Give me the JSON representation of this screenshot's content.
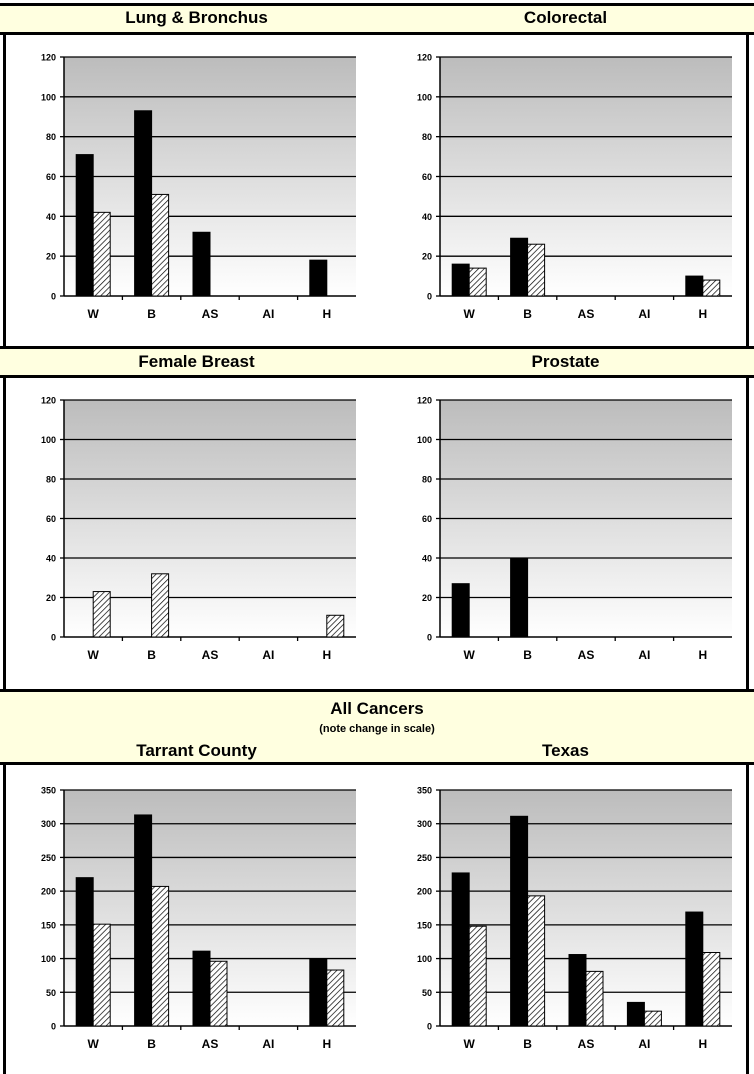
{
  "headers": {
    "row1_left": "Lung & Bronchus",
    "row1_right": "Colorectal",
    "row2_left": "Female Breast",
    "row2_right": "Prostate",
    "row3_title": "All Cancers",
    "row3_note": "(note change in scale)",
    "row3_left": "Tarrant County",
    "row3_right": "Texas"
  },
  "colors": {
    "header_bg": "#ffffe0",
    "series_a": "#000000",
    "series_b_hatch": "#ffffff"
  },
  "chart_data": [
    {
      "id": "lung",
      "type": "bar",
      "categories": [
        "W",
        "B",
        "AS",
        "AI",
        "H"
      ],
      "ylim": [
        0,
        120
      ],
      "yticks": [
        "0",
        "20",
        "40",
        "60",
        "80",
        "100",
        "120"
      ],
      "series": [
        {
          "values": [
            71,
            93,
            32,
            null,
            18
          ]
        },
        {
          "values": [
            42,
            51,
            null,
            null,
            null
          ]
        }
      ]
    },
    {
      "id": "colorectal",
      "type": "bar",
      "categories": [
        "W",
        "B",
        "AS",
        "AI",
        "H"
      ],
      "ylim": [
        0,
        120
      ],
      "yticks": [
        "0",
        "20",
        "40",
        "60",
        "80",
        "100",
        "120"
      ],
      "series": [
        {
          "values": [
            16,
            29,
            null,
            null,
            10
          ]
        },
        {
          "values": [
            14,
            26,
            null,
            null,
            8
          ]
        }
      ]
    },
    {
      "id": "breast",
      "type": "bar",
      "categories": [
        "W",
        "B",
        "AS",
        "AI",
        "H"
      ],
      "ylim": [
        0,
        120
      ],
      "yticks": [
        "0",
        "20",
        "40",
        "60",
        "80",
        "100",
        "120"
      ],
      "series": [
        {
          "values": [
            null,
            null,
            null,
            null,
            null
          ]
        },
        {
          "values": [
            23,
            32,
            null,
            null,
            11
          ]
        }
      ]
    },
    {
      "id": "prostate",
      "type": "bar",
      "categories": [
        "W",
        "B",
        "AS",
        "AI",
        "H"
      ],
      "ylim": [
        0,
        120
      ],
      "yticks": [
        "0",
        "20",
        "40",
        "60",
        "80",
        "100",
        "120"
      ],
      "series": [
        {
          "values": [
            27,
            40,
            null,
            null,
            null
          ]
        },
        {
          "values": [
            null,
            null,
            null,
            null,
            null
          ]
        }
      ]
    },
    {
      "id": "all_tarrant",
      "type": "bar",
      "categories": [
        "W",
        "B",
        "AS",
        "AI",
        "H"
      ],
      "ylim": [
        0,
        350
      ],
      "yticks": [
        "0",
        "50",
        "100",
        "150",
        "200",
        "250",
        "300",
        "350"
      ],
      "series": [
        {
          "values": [
            220,
            313,
            111,
            null,
            100
          ]
        },
        {
          "values": [
            151,
            207,
            96,
            null,
            83
          ]
        }
      ]
    },
    {
      "id": "all_texas",
      "type": "bar",
      "categories": [
        "W",
        "B",
        "AS",
        "AI",
        "H"
      ],
      "ylim": [
        0,
        350
      ],
      "yticks": [
        "0",
        "50",
        "100",
        "150",
        "200",
        "250",
        "300",
        "350"
      ],
      "series": [
        {
          "values": [
            227,
            311,
            106,
            35,
            169
          ]
        },
        {
          "values": [
            148,
            193,
            81,
            22,
            109
          ]
        }
      ]
    }
  ]
}
